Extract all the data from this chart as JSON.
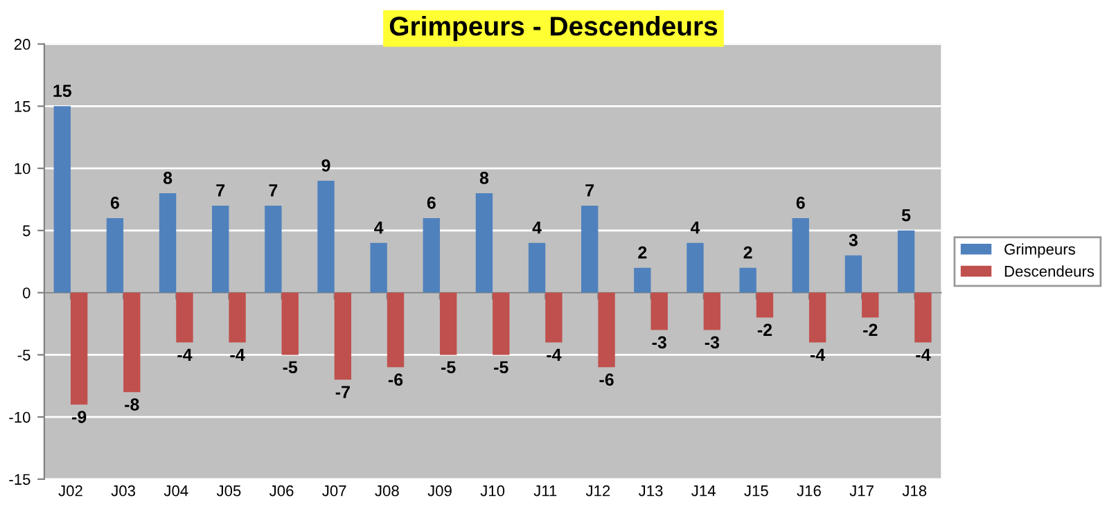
{
  "chart_data": {
    "type": "bar",
    "title": "Grimpeurs - Descendeurs",
    "categories": [
      "J02",
      "J03",
      "J04",
      "J05",
      "J06",
      "J07",
      "J08",
      "J09",
      "J10",
      "J11",
      "J12",
      "J13",
      "J14",
      "J15",
      "J16",
      "J17",
      "J18"
    ],
    "series": [
      {
        "name": "Grimpeurs",
        "color": "#4f81bd",
        "values": [
          15,
          6,
          8,
          7,
          7,
          9,
          4,
          6,
          8,
          4,
          7,
          2,
          4,
          2,
          6,
          3,
          5
        ]
      },
      {
        "name": "Descendeurs",
        "color": "#c0504d",
        "values": [
          -9,
          -8,
          -4,
          -4,
          -5,
          -7,
          -6,
          -5,
          -5,
          -4,
          -6,
          -3,
          -3,
          -2,
          -4,
          -2,
          -4
        ]
      }
    ],
    "ylim": [
      -15,
      20
    ],
    "yticks": [
      -15,
      -10,
      -5,
      0,
      5,
      10,
      15,
      20
    ],
    "grid": "y",
    "legend": "right",
    "data_labels": true
  }
}
